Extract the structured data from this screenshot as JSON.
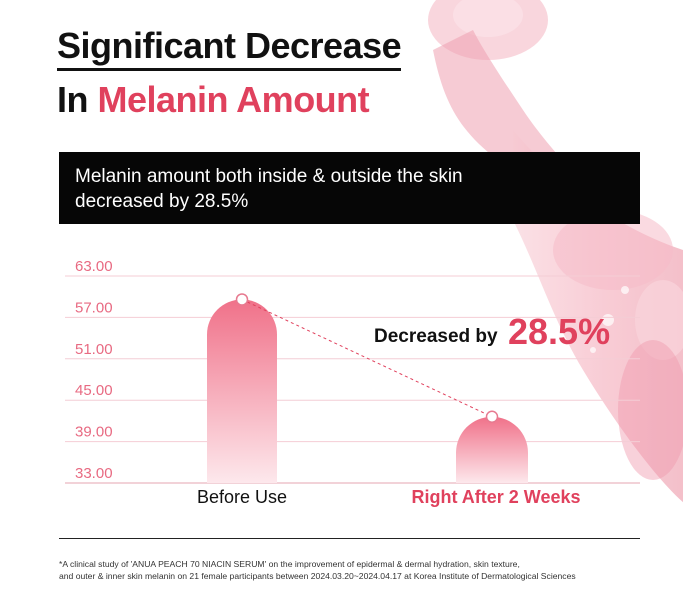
{
  "headline": {
    "line1": "Significant Decrease",
    "line2_prefix": "In ",
    "line2_accent": "Melanin Amount"
  },
  "banner": {
    "line1": "Melanin amount both inside & outside the skin",
    "line2": "decreased by 28.5%"
  },
  "colors": {
    "accent": "#e0415d",
    "bar_top": "#f07189",
    "bar_bottom": "#fde8ec"
  },
  "chart_data": {
    "type": "bar",
    "categories": [
      "Before Use",
      "Right After 2 Weeks"
    ],
    "values": [
      59.6,
      42.6
    ],
    "ylim": [
      33,
      63
    ],
    "yticks": [
      "63.00",
      "57.00",
      "51.00",
      "45.00",
      "39.00",
      "33.00"
    ],
    "annotation": {
      "prefix": "Decreased by ",
      "value": "28.5%"
    }
  },
  "footnote": {
    "line1": "*A clinical study of 'ANUA PEACH 70 NIACIN SERUM' on the improvement of epidermal & dermal hydration, skin texture,",
    "line2": "and outer & inner skin melanin on 21 female participants between 2024.03.20~2024.04.17 at Korea Institute of Dermatological Sciences"
  }
}
